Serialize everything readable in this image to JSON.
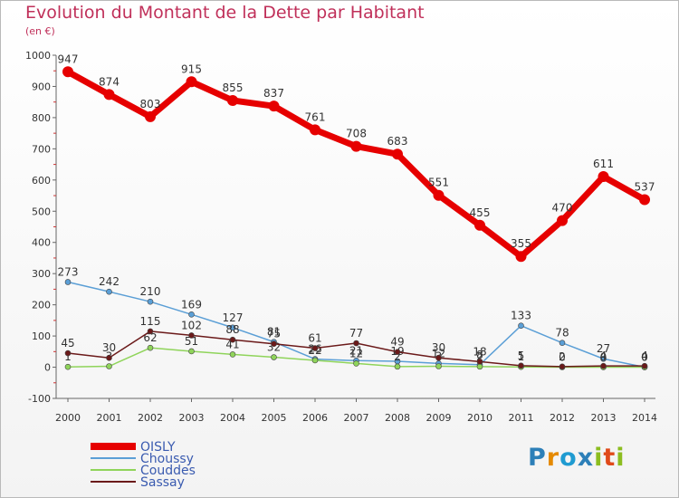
{
  "title": "Evolution du Montant de la Dette par Habitant",
  "subtitle": "(en €)",
  "logo_text": "Proxiti",
  "chart_data": {
    "type": "line",
    "title": "Evolution du Montant de la Dette par Habitant",
    "subtitle": "(en €)",
    "x": [
      2000,
      2001,
      2002,
      2003,
      2004,
      2005,
      2006,
      2007,
      2008,
      2009,
      2010,
      2011,
      2012,
      2013,
      2014
    ],
    "ylim": [
      -100,
      1000
    ],
    "yticks": [
      -100,
      0,
      100,
      200,
      300,
      400,
      500,
      600,
      700,
      800,
      900,
      1000
    ],
    "grid": false,
    "legend_position": "bottom-left",
    "series": [
      {
        "name": "OISLY",
        "color": "#e60000",
        "values": [
          947,
          874,
          803,
          915,
          855,
          837,
          761,
          708,
          683,
          551,
          455,
          355,
          470,
          611,
          537
        ]
      },
      {
        "name": "Choussy",
        "color": "#5b9fd6",
        "values": [
          273,
          242,
          210,
          169,
          127,
          81,
          26,
          21,
          19,
          12,
          8,
          133,
          78,
          27,
          0
        ]
      },
      {
        "name": "Couddes",
        "color": "#8fd45a",
        "values": [
          1,
          3,
          62,
          51,
          41,
          32,
          22,
          12,
          2,
          3,
          2,
          1,
          0,
          0,
          0
        ]
      },
      {
        "name": "Sassay",
        "color": "#6b1a1a",
        "values": [
          45,
          30,
          115,
          102,
          88,
          75,
          61,
          77,
          49,
          30,
          18,
          5,
          2,
          4,
          4
        ]
      }
    ]
  }
}
